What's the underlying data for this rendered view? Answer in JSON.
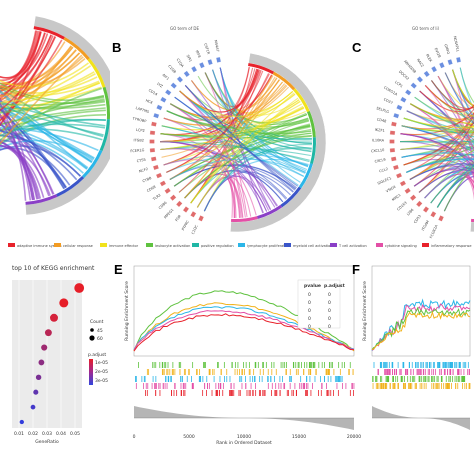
{
  "panels": {
    "B": {
      "label": "B",
      "subtitle": "GO term of DE"
    },
    "C": {
      "label": "C",
      "subtitle": "GO term of lil"
    },
    "E": {
      "label": "E"
    },
    "F": {
      "label": "F"
    }
  },
  "colors": {
    "red": "#e8222b",
    "orange": "#f39c22",
    "yellow": "#f1e21b",
    "green": "#5fc23f",
    "teal": "#1fb7a5",
    "cyan": "#2bb6e8",
    "blue": "#3a55c9",
    "purple": "#8a3fc7",
    "pink": "#e34fa6",
    "grey": "#bfbfbf"
  },
  "chordB": {
    "genes": [
      "C1QC",
      "PTPRC",
      "FGR",
      "MPEG1",
      "CD86",
      "TLR2",
      "CD68",
      "CYBB",
      "NCF2",
      "CTSS",
      "FCER1G",
      "ITGB2",
      "LCP2",
      "TYROBP",
      "LAPTM5",
      "HCK",
      "CD14",
      "LYZ",
      "AIF1",
      "C1QB",
      "C1QA",
      "SPI1",
      "IRF8",
      "CSF1R",
      "MS4A7"
    ]
  },
  "chordC": {
    "genes": [
      "FCGR2A",
      "ITGAM",
      "CD53",
      "LY86",
      "CD163",
      "MRC1",
      "VSIG4",
      "SIGLEC1",
      "CCL2",
      "CXCL9",
      "CXCL10",
      "IL10RA",
      "IKZF1",
      "CD48",
      "SELPLG",
      "CD37",
      "CORO1A",
      "LCP1",
      "DOCK2",
      "ARHGDIB",
      "RAC2",
      "PLEK",
      "EVI2B",
      "GMFG",
      "NCKAP1L"
    ]
  },
  "legend_row": {
    "items": [
      "adaptive immune system",
      "cellular response",
      "immune effector",
      "leukocyte activation",
      "positive regulation",
      "lymphocyte proliferation",
      "myeloid cell activation",
      "T cell activation",
      "cytokine signaling",
      "inflammatory response"
    ]
  },
  "chart_data": [
    {
      "type": "scatter",
      "title": "top 10 of KEGG enrichment",
      "xlabel": "GeneRatio",
      "x_ticks": [
        "0.01",
        "0.02",
        "0.03",
        "0.04",
        "0.05"
      ],
      "xlim": [
        0.005,
        0.055
      ],
      "size_legend_title": "Count",
      "size_legend_values": [
        "45",
        "60"
      ],
      "color_legend_title": "p.adjust",
      "color_legend_values": [
        "1e-05",
        "2e-05",
        "3e-05"
      ],
      "points": [
        {
          "y": "1",
          "x": 0.053,
          "count": 60,
          "padj": 1e-05
        },
        {
          "y": "2",
          "x": 0.042,
          "count": 58,
          "padj": 1e-05
        },
        {
          "y": "3",
          "x": 0.035,
          "count": 55,
          "padj": 1.2e-05
        },
        {
          "y": "4",
          "x": 0.031,
          "count": 52,
          "padj": 1.5e-05
        },
        {
          "y": "5",
          "x": 0.028,
          "count": 50,
          "padj": 1.8e-05
        },
        {
          "y": "6",
          "x": 0.026,
          "count": 49,
          "padj": 2e-05
        },
        {
          "y": "7",
          "x": 0.024,
          "count": 48,
          "padj": 2.2e-05
        },
        {
          "y": "8",
          "x": 0.022,
          "count": 47,
          "padj": 2.5e-05
        },
        {
          "y": "9",
          "x": 0.02,
          "count": 46,
          "padj": 2.8e-05
        },
        {
          "y": "10",
          "x": 0.012,
          "count": 45,
          "padj": 3e-05
        }
      ]
    },
    {
      "type": "line",
      "ylabel": "Running Enrichment Score",
      "xlabel": "Rank in Ordered Dataset",
      "x_ticks": [
        "0",
        "5000",
        "10000",
        "15000",
        "20000"
      ],
      "table_headers": [
        "pvalue",
        "p.adjust"
      ],
      "table_rows": [
        [
          "0",
          "0"
        ],
        [
          "0",
          "0"
        ],
        [
          "0",
          "0"
        ],
        [
          "0",
          "0"
        ],
        [
          "0",
          "0"
        ]
      ],
      "series": [
        {
          "color": "#5fc23f",
          "peak": 0.75
        },
        {
          "color": "#f1b21b",
          "peak": 0.6
        },
        {
          "color": "#2bb6e8",
          "peak": 0.55
        },
        {
          "color": "#e34fa6",
          "peak": 0.5
        },
        {
          "color": "#e8222b",
          "peak": 0.45
        }
      ]
    },
    {
      "type": "line",
      "ylabel": "Running Enrichment Score",
      "series": [
        {
          "color": "#2bb6e8"
        },
        {
          "color": "#e34fa6"
        },
        {
          "color": "#5fc23f"
        },
        {
          "color": "#f1b21b"
        }
      ]
    }
  ]
}
